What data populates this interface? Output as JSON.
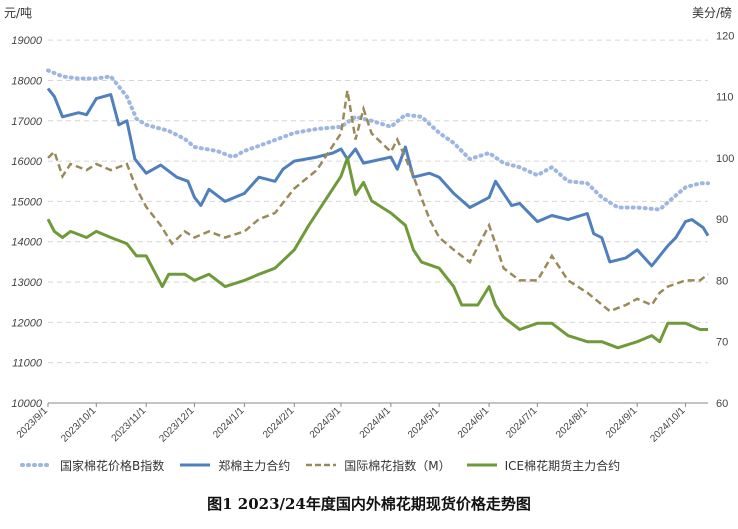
{
  "chart_data": {
    "type": "line",
    "title": "图1 2023/24年度国内外棉花期现货价格走势图",
    "left_axis": {
      "unit": "元/吨",
      "ticks": [
        10000,
        11000,
        12000,
        13000,
        14000,
        15000,
        16000,
        17000,
        18000,
        19000
      ],
      "range": [
        10000,
        19500
      ]
    },
    "right_axis": {
      "unit": "美分/磅",
      "ticks": [
        60,
        70,
        80,
        90,
        100,
        110,
        120
      ],
      "range": [
        60,
        122.5
      ]
    },
    "x_ticks": [
      "2023/9/1",
      "2023/10/1",
      "2023/11/1",
      "2023/12/1",
      "2024/1/1",
      "2024/2/1",
      "2024/3/1",
      "2024/4/1",
      "2024/5/1",
      "2024/6/1",
      "2024/7/1",
      "2024/8/1",
      "2024/9/1",
      "2024/10/1"
    ],
    "grid": "horizontal dashed",
    "legend_position": "bottom",
    "series": [
      {
        "name": "国家棉花价格B指数",
        "axis": "left",
        "style": "dotted",
        "color": "#9db7e0",
        "points": [
          [
            "2023/9/1",
            18250
          ],
          [
            "2023/9/10",
            18100
          ],
          [
            "2023/9/20",
            18050
          ],
          [
            "2023/10/1",
            18050
          ],
          [
            "2023/10/10",
            18100
          ],
          [
            "2023/10/20",
            17600
          ],
          [
            "2023/10/26",
            17050
          ],
          [
            "2023/11/1",
            16900
          ],
          [
            "2023/11/15",
            16750
          ],
          [
            "2023/11/25",
            16550
          ],
          [
            "2023/12/1",
            16350
          ],
          [
            "2023/12/15",
            16250
          ],
          [
            "2023/12/25",
            16100
          ],
          [
            "2024/1/1",
            16250
          ],
          [
            "2024/1/15",
            16450
          ],
          [
            "2024/2/1",
            16700
          ],
          [
            "2024/2/15",
            16800
          ],
          [
            "2024/3/1",
            16850
          ],
          [
            "2024/3/10",
            17100
          ],
          [
            "2024/3/20",
            17000
          ],
          [
            "2024/4/1",
            16850
          ],
          [
            "2024/4/10",
            17150
          ],
          [
            "2024/4/20",
            17100
          ],
          [
            "2024/5/1",
            16700
          ],
          [
            "2024/5/10",
            16450
          ],
          [
            "2024/5/20",
            16050
          ],
          [
            "2024/6/1",
            16200
          ],
          [
            "2024/6/10",
            15950
          ],
          [
            "2024/6/20",
            15850
          ],
          [
            "2024/7/1",
            15650
          ],
          [
            "2024/7/10",
            15850
          ],
          [
            "2024/7/20",
            15500
          ],
          [
            "2024/8/1",
            15450
          ],
          [
            "2024/8/10",
            15100
          ],
          [
            "2024/8/20",
            14850
          ],
          [
            "2024/9/1",
            14850
          ],
          [
            "2024/9/15",
            14800
          ],
          [
            "2024/9/25",
            15150
          ],
          [
            "2024/10/1",
            15350
          ],
          [
            "2024/10/10",
            15450
          ],
          [
            "2024/10/15",
            15450
          ]
        ]
      },
      {
        "name": "郑棉主力合约",
        "axis": "left",
        "style": "solid",
        "color": "#4f7fbd",
        "points": [
          [
            "2023/9/1",
            17800
          ],
          [
            "2023/9/5",
            17600
          ],
          [
            "2023/9/10",
            17100
          ],
          [
            "2023/9/20",
            17200
          ],
          [
            "2023/9/25",
            17150
          ],
          [
            "2023/10/1",
            17550
          ],
          [
            "2023/10/10",
            17650
          ],
          [
            "2023/10/15",
            16900
          ],
          [
            "2023/10/20",
            17000
          ],
          [
            "2023/10/25",
            16050
          ],
          [
            "2023/11/1",
            15700
          ],
          [
            "2023/11/10",
            15900
          ],
          [
            "2023/11/20",
            15600
          ],
          [
            "2023/11/27",
            15500
          ],
          [
            "2023/12/1",
            15100
          ],
          [
            "2023/12/5",
            14900
          ],
          [
            "2023/12/10",
            15300
          ],
          [
            "2023/12/20",
            15000
          ],
          [
            "2024/1/1",
            15200
          ],
          [
            "2024/1/10",
            15600
          ],
          [
            "2024/1/20",
            15500
          ],
          [
            "2024/1/25",
            15800
          ],
          [
            "2024/2/1",
            16000
          ],
          [
            "2024/2/15",
            16100
          ],
          [
            "2024/2/25",
            16200
          ],
          [
            "2024/3/1",
            16300
          ],
          [
            "2024/3/5",
            16050
          ],
          [
            "2024/3/10",
            16300
          ],
          [
            "2024/3/15",
            15950
          ],
          [
            "2024/4/1",
            16100
          ],
          [
            "2024/4/5",
            15800
          ],
          [
            "2024/4/10",
            16350
          ],
          [
            "2024/4/15",
            15600
          ],
          [
            "2024/4/25",
            15700
          ],
          [
            "2024/5/1",
            15600
          ],
          [
            "2024/5/10",
            15200
          ],
          [
            "2024/5/20",
            14850
          ],
          [
            "2024/6/1",
            15100
          ],
          [
            "2024/6/5",
            15500
          ],
          [
            "2024/6/15",
            14900
          ],
          [
            "2024/6/20",
            14950
          ],
          [
            "2024/7/1",
            14500
          ],
          [
            "2024/7/10",
            14650
          ],
          [
            "2024/7/20",
            14550
          ],
          [
            "2024/8/1",
            14700
          ],
          [
            "2024/8/5",
            14200
          ],
          [
            "2024/8/10",
            14100
          ],
          [
            "2024/8/15",
            13500
          ],
          [
            "2024/8/25",
            13600
          ],
          [
            "2024/9/1",
            13800
          ],
          [
            "2024/9/10",
            13400
          ],
          [
            "2024/9/20",
            13900
          ],
          [
            "2024/9/25",
            14100
          ],
          [
            "2024/10/1",
            14500
          ],
          [
            "2024/10/5",
            14550
          ],
          [
            "2024/10/12",
            14350
          ],
          [
            "2024/10/15",
            14150
          ]
        ]
      },
      {
        "name": "国际棉花指数（M）",
        "axis": "right",
        "style": "dashed",
        "color": "#9a8a5a",
        "points": [
          [
            "2023/9/1",
            100
          ],
          [
            "2023/9/5",
            101
          ],
          [
            "2023/9/10",
            97
          ],
          [
            "2023/9/15",
            99
          ],
          [
            "2023/9/25",
            98
          ],
          [
            "2023/10/1",
            99
          ],
          [
            "2023/10/10",
            98
          ],
          [
            "2023/10/20",
            99
          ],
          [
            "2023/10/26",
            95
          ],
          [
            "2023/11/1",
            92
          ],
          [
            "2023/11/10",
            89
          ],
          [
            "2023/11/17",
            86
          ],
          [
            "2023/11/25",
            88
          ],
          [
            "2023/12/1",
            87
          ],
          [
            "2023/12/10",
            88
          ],
          [
            "2023/12/20",
            87
          ],
          [
            "2024/1/1",
            88
          ],
          [
            "2024/1/10",
            90
          ],
          [
            "2024/1/20",
            91
          ],
          [
            "2024/2/1",
            95
          ],
          [
            "2024/2/15",
            98
          ],
          [
            "2024/2/25",
            102
          ],
          [
            "2024/3/1",
            104
          ],
          [
            "2024/3/5",
            111
          ],
          [
            "2024/3/10",
            103
          ],
          [
            "2024/3/15",
            108
          ],
          [
            "2024/3/20",
            104
          ],
          [
            "2024/4/1",
            101
          ],
          [
            "2024/4/5",
            103
          ],
          [
            "2024/4/10",
            100
          ],
          [
            "2024/4/15",
            97
          ],
          [
            "2024/4/25",
            90
          ],
          [
            "2024/5/1",
            87
          ],
          [
            "2024/5/10",
            85
          ],
          [
            "2024/5/20",
            83
          ],
          [
            "2024/6/1",
            89
          ],
          [
            "2024/6/5",
            86
          ],
          [
            "2024/6/10",
            82
          ],
          [
            "2024/6/20",
            80
          ],
          [
            "2024/7/1",
            80
          ],
          [
            "2024/7/10",
            84
          ],
          [
            "2024/7/20",
            80
          ],
          [
            "2024/8/1",
            78
          ],
          [
            "2024/8/15",
            75
          ],
          [
            "2024/8/25",
            76
          ],
          [
            "2024/9/1",
            77
          ],
          [
            "2024/9/10",
            76
          ],
          [
            "2024/9/15",
            78
          ],
          [
            "2024/9/20",
            79
          ],
          [
            "2024/10/1",
            80
          ],
          [
            "2024/10/10",
            80
          ],
          [
            "2024/10/15",
            81
          ]
        ]
      },
      {
        "name": "ICE棉花期货主力合约",
        "axis": "right",
        "style": "solid",
        "color": "#6f9a3a",
        "points": [
          [
            "2023/9/1",
            90
          ],
          [
            "2023/9/5",
            88
          ],
          [
            "2023/9/10",
            87
          ],
          [
            "2023/9/15",
            88
          ],
          [
            "2023/9/25",
            87
          ],
          [
            "2023/10/1",
            88
          ],
          [
            "2023/10/10",
            87
          ],
          [
            "2023/10/20",
            86
          ],
          [
            "2023/10/26",
            84
          ],
          [
            "2023/11/1",
            84
          ],
          [
            "2023/11/7",
            81
          ],
          [
            "2023/11/11",
            79
          ],
          [
            "2023/11/15",
            81
          ],
          [
            "2023/11/25",
            81
          ],
          [
            "2023/12/1",
            80
          ],
          [
            "2023/12/10",
            81
          ],
          [
            "2023/12/20",
            79
          ],
          [
            "2024/1/1",
            80
          ],
          [
            "2024/1/10",
            81
          ],
          [
            "2024/1/20",
            82
          ],
          [
            "2024/2/1",
            85
          ],
          [
            "2024/2/10",
            89
          ],
          [
            "2024/2/20",
            93
          ],
          [
            "2024/3/1",
            97
          ],
          [
            "2024/3/5",
            100
          ],
          [
            "2024/3/10",
            94
          ],
          [
            "2024/3/15",
            96
          ],
          [
            "2024/3/20",
            93
          ],
          [
            "2024/4/1",
            91
          ],
          [
            "2024/4/10",
            89
          ],
          [
            "2024/4/15",
            85
          ],
          [
            "2024/4/20",
            83
          ],
          [
            "2024/5/1",
            82
          ],
          [
            "2024/5/10",
            79
          ],
          [
            "2024/5/15",
            76
          ],
          [
            "2024/5/25",
            76
          ],
          [
            "2024/6/1",
            79
          ],
          [
            "2024/6/5",
            76
          ],
          [
            "2024/6/10",
            74
          ],
          [
            "2024/6/20",
            72
          ],
          [
            "2024/7/1",
            73
          ],
          [
            "2024/7/10",
            73
          ],
          [
            "2024/7/20",
            71
          ],
          [
            "2024/8/1",
            70
          ],
          [
            "2024/8/10",
            70
          ],
          [
            "2024/8/20",
            69
          ],
          [
            "2024/9/1",
            70
          ],
          [
            "2024/9/10",
            71
          ],
          [
            "2024/9/15",
            70
          ],
          [
            "2024/9/20",
            73
          ],
          [
            "2024/10/1",
            73
          ],
          [
            "2024/10/10",
            72
          ],
          [
            "2024/10/15",
            72
          ]
        ]
      }
    ]
  }
}
